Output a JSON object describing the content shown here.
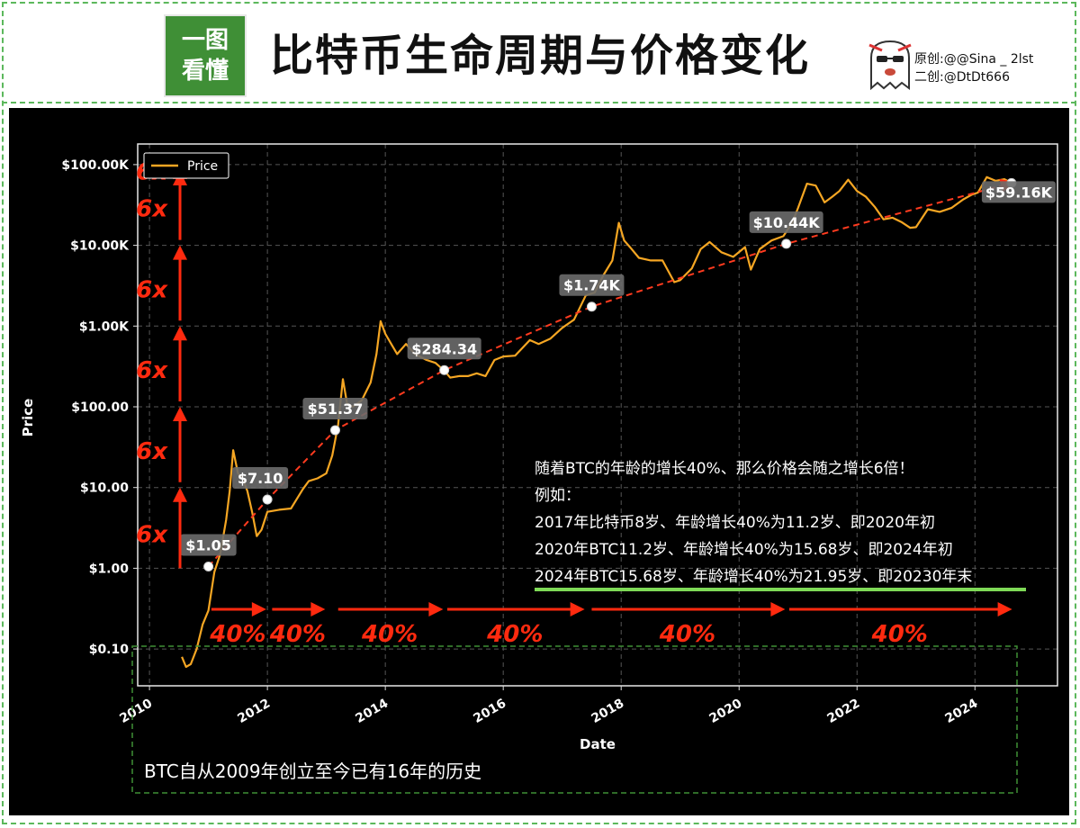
{
  "header": {
    "logo_line1": "一图",
    "logo_line2": "看懂",
    "title": "比特币生命周期与价格变化",
    "credit_original": "原创:@@Sina _ 2lst",
    "credit_second": "二创:@DtDt666"
  },
  "colors": {
    "background": "#000000",
    "price_line": "#f5a623",
    "trend": "#ff3b1f",
    "arrow": "#ff2a0f",
    "accent_green": "#3f8f36",
    "underline": "#7ed957",
    "label_bg": "#6b6b6b"
  },
  "chart_data": {
    "type": "line",
    "xlabel": "Date",
    "ylabel": "Price",
    "yscale": "log",
    "ylim": [
      0.035,
      180000
    ],
    "xlim": [
      2009.8,
      2025.4
    ],
    "grid": true,
    "legend": {
      "position": "top-left",
      "entries": [
        "Price"
      ]
    },
    "x_ticks": [
      2010,
      2012,
      2014,
      2016,
      2018,
      2020,
      2022,
      2024
    ],
    "x_tick_labels": [
      "2010",
      "2012",
      "2014",
      "2016",
      "2018",
      "2020",
      "2022",
      "2024"
    ],
    "y_ticks": [
      0.1,
      1,
      10,
      100,
      1000,
      10000,
      100000
    ],
    "y_tick_labels": [
      "$0.10",
      "$1.00",
      "$10.00",
      "$100.00",
      "$1.00K",
      "$10.00K",
      "$100.00K"
    ],
    "series": [
      {
        "name": "Price",
        "x": [
          2010.55,
          2010.62,
          2010.7,
          2010.8,
          2010.9,
          2011.0,
          2011.1,
          2011.2,
          2011.3,
          2011.36,
          2011.42,
          2011.5,
          2011.58,
          2011.66,
          2011.74,
          2011.82,
          2011.9,
          2012.0,
          2012.2,
          2012.4,
          2012.6,
          2012.7,
          2012.85,
          2013.0,
          2013.1,
          2013.2,
          2013.28,
          2013.35,
          2013.45,
          2013.6,
          2013.75,
          2013.85,
          2013.92,
          2014.0,
          2014.1,
          2014.2,
          2014.35,
          2014.5,
          2014.7,
          2014.85,
          2015.0,
          2015.1,
          2015.25,
          2015.4,
          2015.55,
          2015.7,
          2015.85,
          2016.0,
          2016.2,
          2016.45,
          2016.6,
          2016.8,
          2017.0,
          2017.2,
          2017.4,
          2017.55,
          2017.7,
          2017.85,
          2017.96,
          2018.05,
          2018.15,
          2018.3,
          2018.5,
          2018.7,
          2018.9,
          2019.0,
          2019.2,
          2019.35,
          2019.5,
          2019.7,
          2019.9,
          2020.1,
          2020.2,
          2020.35,
          2020.55,
          2020.75,
          2020.9,
          2021.0,
          2021.15,
          2021.3,
          2021.45,
          2021.58,
          2021.7,
          2021.85,
          2022.0,
          2022.15,
          2022.3,
          2022.45,
          2022.6,
          2022.75,
          2022.9,
          2023.0,
          2023.2,
          2023.4,
          2023.6,
          2023.8,
          2023.95,
          2024.05,
          2024.2,
          2024.35,
          2024.5,
          2024.62
        ],
        "values": [
          0.08,
          0.06,
          0.065,
          0.1,
          0.2,
          0.3,
          0.9,
          1.5,
          4.0,
          9.0,
          29.0,
          15.0,
          13.0,
          9.0,
          5.0,
          2.5,
          3.0,
          5.0,
          5.3,
          5.5,
          9.5,
          12.0,
          13.0,
          15.0,
          25.0,
          60.0,
          220.0,
          110.0,
          100.0,
          120.0,
          200.0,
          450.0,
          1150.0,
          800.0,
          600.0,
          450.0,
          600.0,
          450.0,
          380.0,
          350.0,
          280.0,
          230.0,
          240.0,
          240.0,
          260.0,
          240.0,
          380.0,
          420.0,
          430.0,
          670.0,
          600.0,
          700.0,
          950.0,
          1200.0,
          2400.0,
          2600.0,
          4300.0,
          6500.0,
          19000.0,
          11500.0,
          9500.0,
          7000.0,
          6500.0,
          6500.0,
          3500.0,
          3700.0,
          5200.0,
          9000.0,
          11000.0,
          8200.0,
          7200.0,
          9500.0,
          5000.0,
          9000.0,
          11500.0,
          13000.0,
          19000.0,
          29000.0,
          58000.0,
          55000.0,
          34000.0,
          40000.0,
          47000.0,
          65000.0,
          47000.0,
          40000.0,
          30000.0,
          21000.0,
          22000.0,
          19500.0,
          16500.0,
          16800.0,
          28000.0,
          26000.0,
          29000.0,
          37000.0,
          42500.0,
          45000.0,
          70000.0,
          63000.0,
          66000.0,
          59160.0
        ]
      },
      {
        "name": "",
        "x": [
          2011.0,
          2012.0,
          2013.15,
          2015.0,
          2017.5,
          2020.8,
          2024.62
        ],
        "values": [
          1.05,
          7.1,
          51.37,
          284.34,
          1740,
          10440,
          59160
        ]
      }
    ],
    "annotations": {
      "price_labels": [
        "$1.05",
        "$7.10",
        "$51.37",
        "$284.34",
        "$1.74K",
        "$10.44K",
        "$59.16K"
      ],
      "multiplier_labels": [
        "6x",
        "6x",
        "6x",
        "6x",
        "6x",
        "6x"
      ],
      "age_growth_labels": [
        "40%",
        "40%",
        "40%",
        "40%",
        "40%",
        "40%"
      ]
    }
  },
  "notes": {
    "line1": "随着BTC的年龄的增长40%、那么价格会随之增长6倍！",
    "line2": "例如：",
    "line3": "2017年比特币8岁、年龄增长40%为11.2岁、即2020年初",
    "line4": "2020年BTC11.2岁、年龄增长40%为15.68岁、即2024年初",
    "line5": "2024年BTC15.68岁、年龄增长40%为21.95岁、即20230年末",
    "footer": "BTC自从2009年创立至今已有16年的历史"
  }
}
